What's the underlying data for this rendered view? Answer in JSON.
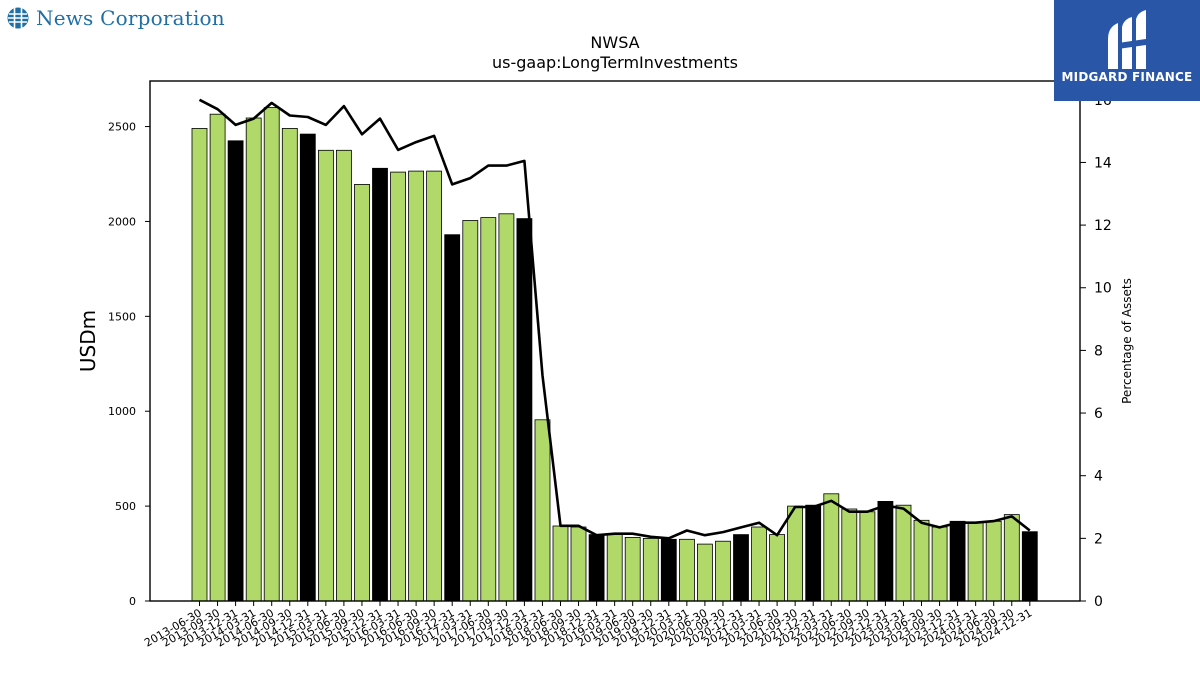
{
  "header": {
    "company_name": "News Corporation",
    "brand_name": "MIDGARD FINANCE",
    "brand_color": "#2a56a8",
    "company_color": "#1f6fa6"
  },
  "chart_data": {
    "type": "bar",
    "title": "NWSA",
    "subtitle": "us-gaap:LongTermInvestments",
    "ylabel": "USDm",
    "y2label": "Percentage of Assets",
    "ylim": [
      0,
      2740
    ],
    "y2lim": [
      0,
      16.6
    ],
    "yticks": [
      0,
      500,
      1000,
      1500,
      2000,
      2500
    ],
    "y2ticks": [
      0,
      2,
      4,
      6,
      8,
      10,
      12,
      14,
      16
    ],
    "bar_color": "#b0d96a",
    "highlight_color": "#000000",
    "line_color": "#000000",
    "categories": [
      "2013-06-30",
      "2013-09-30",
      "2013-12-31",
      "2014-03-31",
      "2014-06-30",
      "2014-09-30",
      "2014-12-31",
      "2015-03-31",
      "2015-06-30",
      "2015-09-30",
      "2015-12-31",
      "2016-03-31",
      "2016-06-30",
      "2016-09-30",
      "2016-12-31",
      "2017-03-31",
      "2017-06-30",
      "2017-09-30",
      "2017-12-31",
      "2018-03-31",
      "2018-06-30",
      "2018-09-30",
      "2018-12-31",
      "2019-03-31",
      "2019-06-30",
      "2019-09-30",
      "2019-12-31",
      "2020-03-31",
      "2020-06-30",
      "2020-09-30",
      "2020-12-31",
      "2021-03-31",
      "2021-06-30",
      "2021-09-30",
      "2021-12-31",
      "2022-03-31",
      "2022-06-30",
      "2022-09-30",
      "2022-12-31",
      "2023-03-31",
      "2023-06-30",
      "2023-09-30",
      "2023-12-31",
      "2024-03-31",
      "2024-06-30",
      "2024-09-30",
      "2024-12-31"
    ],
    "series": [
      {
        "values": [
          2490,
          2565,
          2425,
          2545,
          2600,
          2490,
          2460,
          2375,
          2375,
          2195,
          2280,
          2260,
          2265,
          2265,
          1930,
          2005,
          2020,
          2040,
          2015,
          955,
          395,
          390,
          350,
          350,
          335,
          330,
          325,
          325,
          300,
          315,
          350,
          390,
          350,
          500,
          505,
          565,
          485,
          470,
          525,
          505,
          425,
          390,
          420,
          415,
          420,
          455,
          365
        ],
        "highlighted": [
          false,
          false,
          true,
          false,
          false,
          false,
          true,
          false,
          false,
          false,
          true,
          false,
          false,
          false,
          true,
          false,
          false,
          false,
          true,
          false,
          false,
          false,
          true,
          false,
          false,
          false,
          true,
          false,
          false,
          false,
          true,
          false,
          false,
          false,
          true,
          false,
          false,
          false,
          true,
          false,
          false,
          false,
          true,
          false,
          false,
          false,
          true
        ]
      },
      {
        "axis": "right",
        "type": "line",
        "values": [
          16.0,
          15.7,
          15.2,
          15.4,
          15.9,
          15.5,
          15.45,
          15.2,
          15.8,
          14.9,
          15.4,
          14.4,
          14.65,
          14.85,
          13.3,
          13.5,
          13.9,
          13.9,
          14.05,
          7.2,
          2.4,
          2.4,
          2.1,
          2.15,
          2.15,
          2.05,
          2.0,
          2.25,
          2.1,
          2.2,
          2.35,
          2.5,
          2.1,
          3.0,
          3.0,
          3.2,
          2.85,
          2.85,
          3.05,
          2.95,
          2.5,
          2.35,
          2.5,
          2.5,
          2.55,
          2.7,
          2.25
        ]
      }
    ]
  }
}
